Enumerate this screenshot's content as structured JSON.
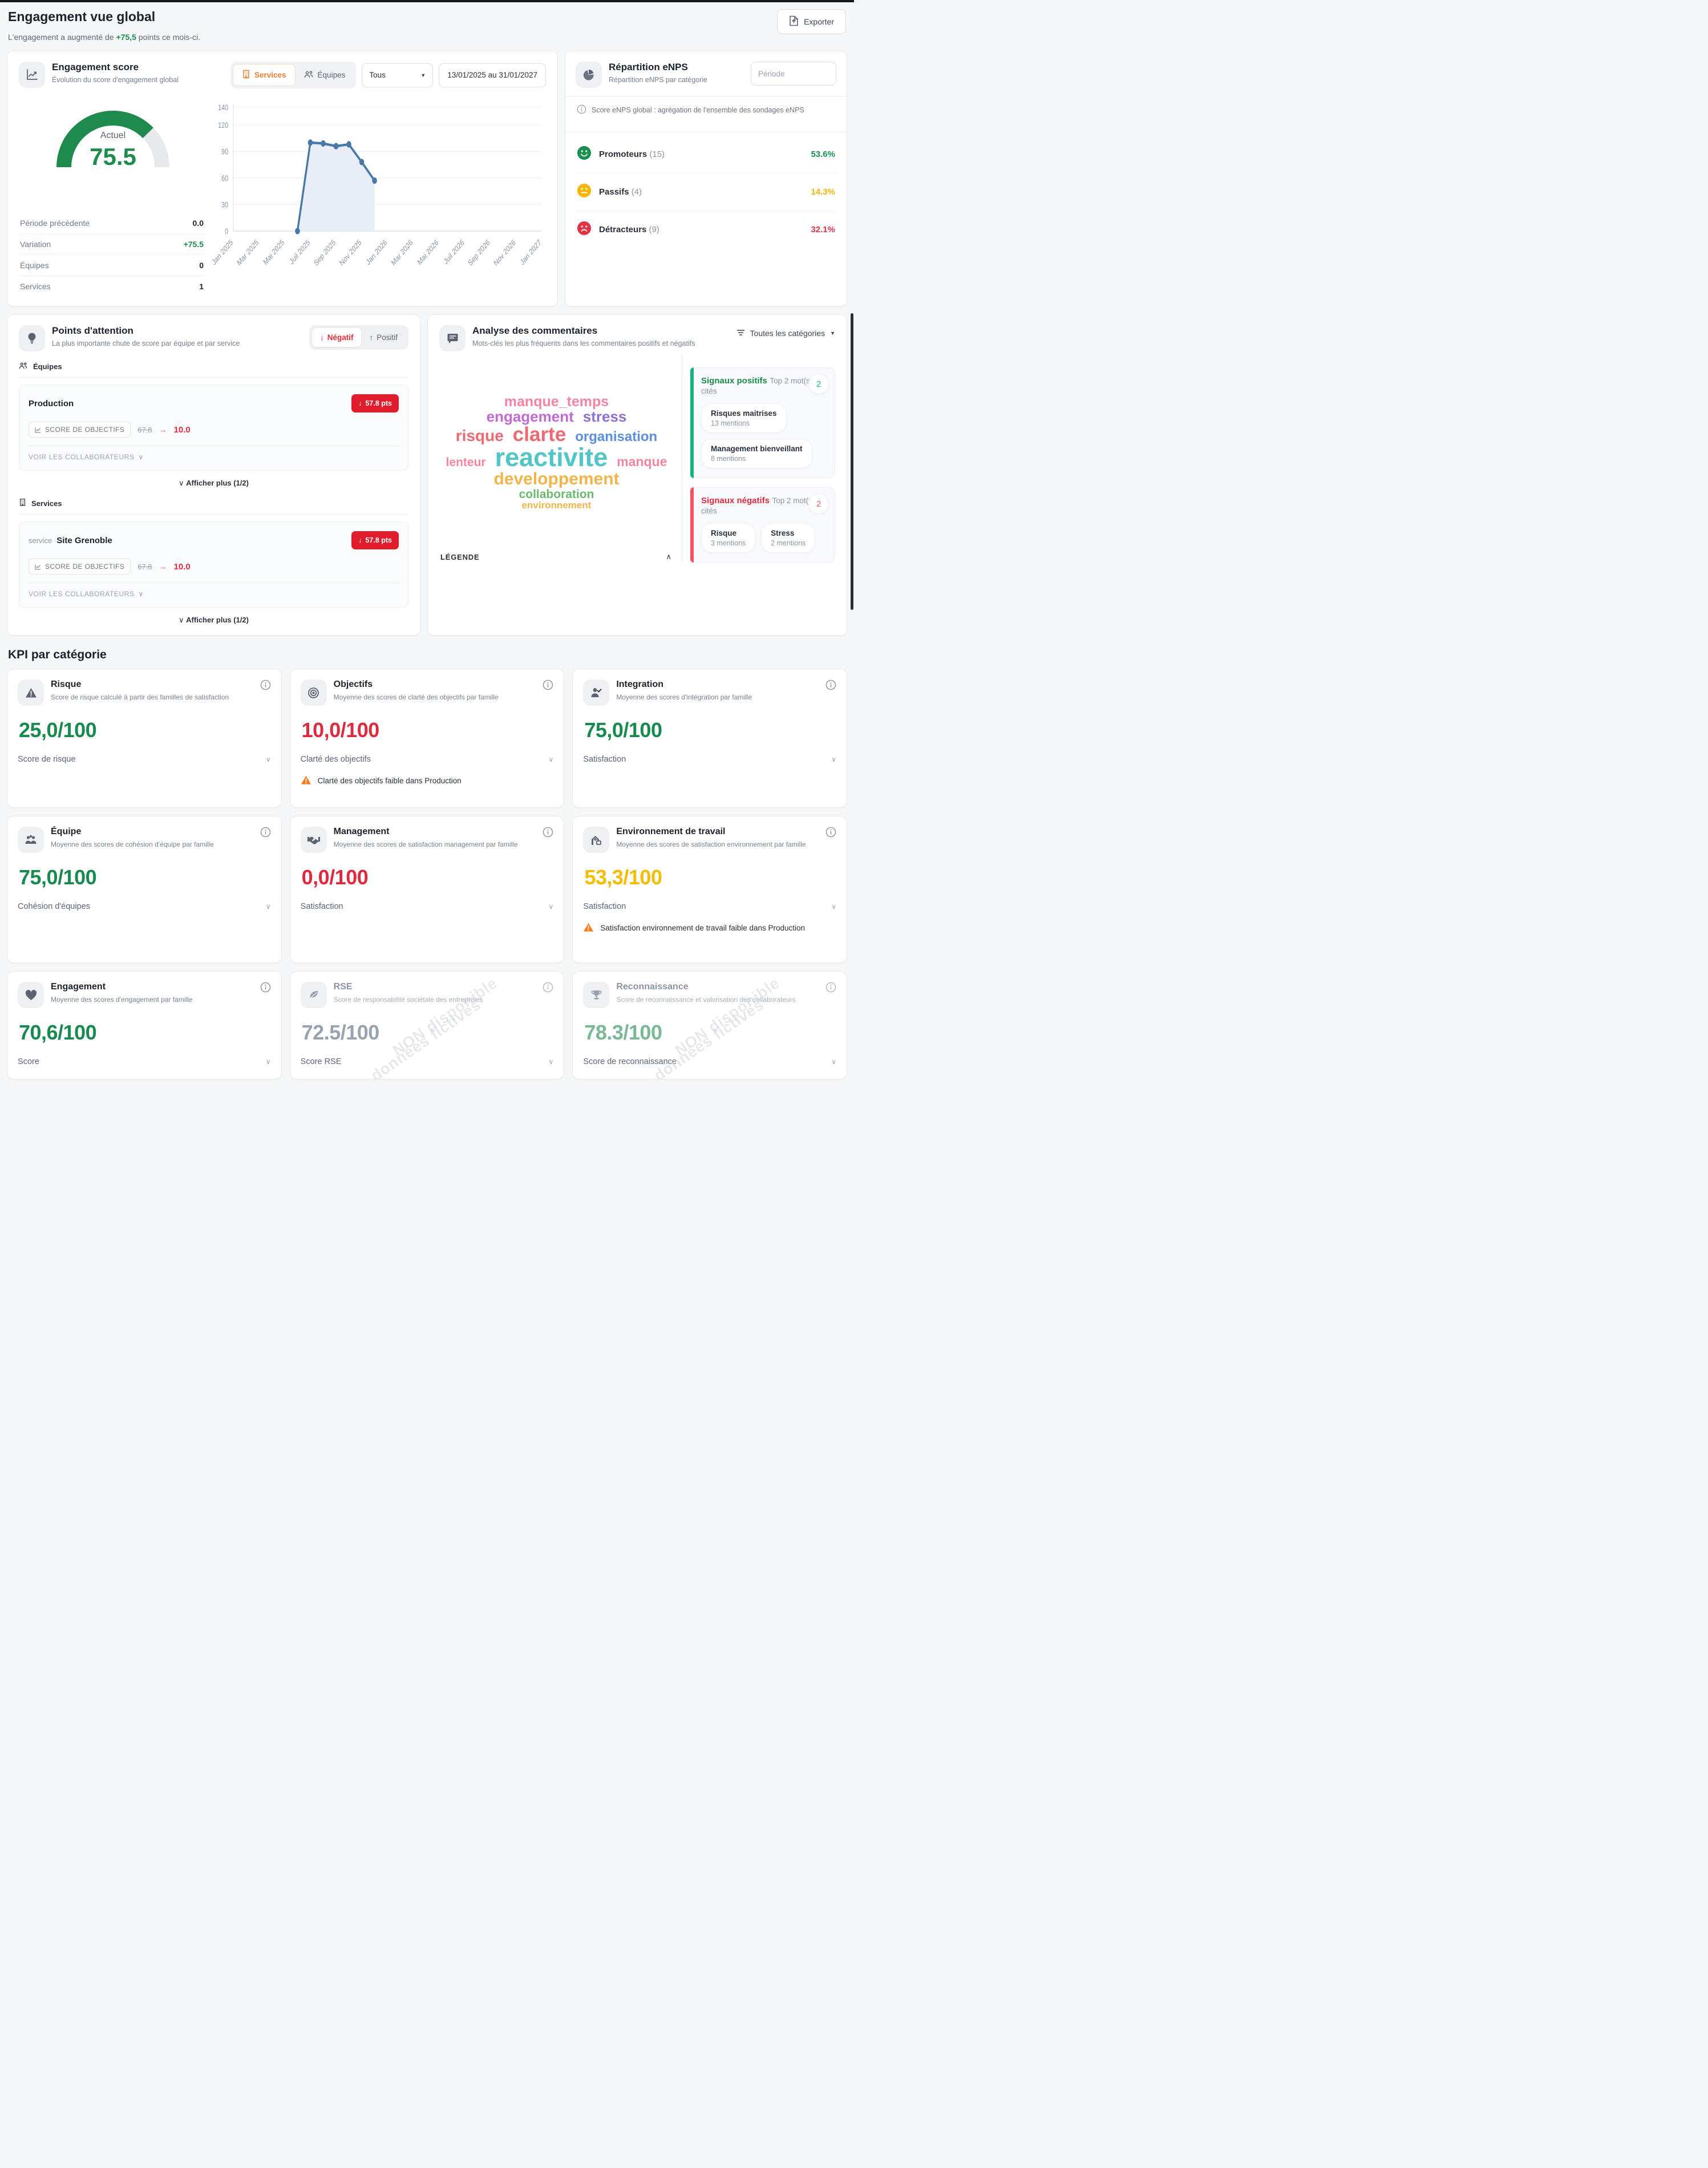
{
  "page": {
    "title": "Engagement vue global",
    "subtitle_prefix": "L'engagement a augmenté de ",
    "subtitle_delta": "+75,5",
    "subtitle_suffix": " points ce mois-ci.",
    "export_label": "Exporter"
  },
  "engagement_score": {
    "title": "Engagement score",
    "subtitle": "Évolution du score d'engagement global",
    "toggle": {
      "services": "Services",
      "equipes": "Équipes"
    },
    "filter_value": "Tous",
    "date_range": "13/01/2025 au 31/01/2027",
    "gauge": {
      "label": "Actuel",
      "value": "75.5",
      "percent": 75.5,
      "color": "#1f8a4e",
      "track": "#e7e9ec"
    },
    "stats": [
      {
        "label": "Période précédente",
        "value": "0.0"
      },
      {
        "label": "Variation",
        "value": "+75.5"
      },
      {
        "label": "Équipes",
        "value": "0"
      },
      {
        "label": "Services",
        "value": "1"
      }
    ]
  },
  "chart_data": {
    "type": "area",
    "title": "Évolution du score d'engagement global",
    "xlabel": "",
    "ylabel": "",
    "ylim": [
      0,
      140
    ],
    "y_ticks": [
      0,
      30,
      60,
      90,
      120,
      140
    ],
    "grid": true,
    "legend": false,
    "x_tick_labels": [
      "Jan 2025",
      "Mar 2025",
      "Mai 2025",
      "Juil 2025",
      "Sep 2025",
      "Nov 2025",
      "Jan 2026",
      "Mar 2026",
      "Mai 2026",
      "Juil 2026",
      "Sep 2026",
      "Nov 2026",
      "Jan 2027"
    ],
    "x_total_months": 24,
    "points": [
      {
        "label": "Juin 2025",
        "x_index": 5,
        "y": 0
      },
      {
        "label": "Juil 2025",
        "x_index": 6,
        "y": 100
      },
      {
        "label": "Août 2025",
        "x_index": 7,
        "y": 99
      },
      {
        "label": "Sept 2025",
        "x_index": 8,
        "y": 96
      },
      {
        "label": "Oct 2025",
        "x_index": 9,
        "y": 98
      },
      {
        "label": "Nov 2025",
        "x_index": 10,
        "y": 78
      },
      {
        "label": "Déc 2025",
        "x_index": 11,
        "y": 57
      }
    ],
    "line_color": "#4878a8",
    "fill_color": "#e9edf8"
  },
  "enps": {
    "title": "Répartition eNPS",
    "subtitle": "Répartition eNPS par catégorie",
    "period_placeholder": "Période",
    "info": "Score eNPS global : agrégation de l'ensemble des sondages eNPS",
    "rows": [
      {
        "label": "Promoteurs",
        "count": "(15)",
        "value": "53.6%",
        "color": "#188f4f",
        "face": "happy"
      },
      {
        "label": "Passifs",
        "count": "(4)",
        "value": "14.3%",
        "color": "#f2b705",
        "face": "neutral"
      },
      {
        "label": "Détracteurs",
        "count": "(9)",
        "value": "32.1%",
        "color": "#e13248",
        "face": "sad"
      }
    ]
  },
  "attention": {
    "title": "Points d'attention",
    "subtitle": "La plus importante chute de score par équipe et par service",
    "toggle": {
      "negative": "Négatif",
      "positive": "Positif"
    },
    "sections": [
      {
        "label": "Équipes",
        "row": {
          "prefix": "",
          "name": "Production",
          "badge": "57.8 pts",
          "chip": "SCORE DE OBJECTIFS",
          "old": "67.8",
          "new": "10.0",
          "link": "VOIR LES COLLABORATEURS"
        },
        "more": "Afficher plus (1/2)"
      },
      {
        "label": "Services",
        "row": {
          "prefix": "service",
          "name": "Site Grenoble",
          "badge": "57.8 pts",
          "chip": "SCORE DE OBJECTIFS",
          "old": "67.8",
          "new": "10.0",
          "link": "VOIR LES COLLABORATEURS"
        },
        "more": "Afficher plus (1/2)"
      }
    ]
  },
  "comments": {
    "title": "Analyse des commentaires",
    "subtitle": "Mots-clés les plus fréquents dans les commentaires positifs et négatifs",
    "filter": "Toutes les catégories",
    "legend_label": "LÉGENDE",
    "wordcloud": [
      {
        "text": "manque_temps",
        "color": "#f585a0",
        "size": 25
      },
      {
        "text": "engagement",
        "color": "#c06ad4",
        "size": 26
      },
      {
        "text": "stress",
        "color": "#8d6fd6",
        "size": 26
      },
      {
        "text": "risque",
        "color": "#ee6a72",
        "size": 28
      },
      {
        "text": "clarte",
        "color": "#ee6a72",
        "size": 35
      },
      {
        "text": "organisation",
        "color": "#5a8ede",
        "size": 24
      },
      {
        "text": "lenteur",
        "color": "#f585a0",
        "size": 21
      },
      {
        "text": "reactivite",
        "color": "#52c5c9",
        "size": 45
      },
      {
        "text": "manque",
        "color": "#f585a0",
        "size": 23
      },
      {
        "text": "developpement",
        "color": "#f2b54b",
        "size": 30
      },
      {
        "text": "collaboration",
        "color": "#6cb871",
        "size": 21
      },
      {
        "text": "environnement",
        "color": "#f2b54b",
        "size": 17
      }
    ],
    "cloud_lines": [
      [
        0
      ],
      [
        1,
        2
      ],
      [
        3,
        4,
        5
      ],
      [
        6,
        7,
        8
      ],
      [
        9
      ],
      [
        10
      ],
      [
        11
      ]
    ],
    "positive": {
      "title": "Signaux positifs",
      "top_label": "Top 2 mot(s) cités",
      "count": "2",
      "pills": [
        {
          "word": "Risques maitrises",
          "mentions": "13 mentions"
        },
        {
          "word": "Management bienveillant",
          "mentions": "8 mentions"
        }
      ]
    },
    "negative": {
      "title": "Signaux négatifs",
      "top_label": "Top 2 mot(s) cités",
      "count": "2",
      "pills": [
        {
          "word": "Risque",
          "mentions": "3 mentions"
        },
        {
          "word": "Stress",
          "mentions": "2 mentions"
        }
      ]
    }
  },
  "kpi": {
    "section_title": "KPI par catégorie",
    "cards": [
      {
        "title": "Risque",
        "subtitle": "Score de risque calculé à partir des familles de satisfaction",
        "value": "25,0/100",
        "value_color": "#188a4f",
        "label": "Score de risque"
      },
      {
        "title": "Objectifs",
        "subtitle": "Moyenne des scores de clarté des objectifs par famille",
        "value": "10,0/100",
        "value_color": "#dc2b3e",
        "label": "Clarté des objectifs",
        "warning": "Clarté des objectifs faible dans Production"
      },
      {
        "title": "Integration",
        "subtitle": "Moyenne des scores d'intégration par famille",
        "value": "75,0/100",
        "value_color": "#188a4f",
        "label": "Satisfaction"
      },
      {
        "title": "Équipe",
        "subtitle": "Moyenne des scores de cohésion d'équipe par famille",
        "value": "75,0/100",
        "value_color": "#188a4f",
        "label": "Cohésion d'équipes"
      },
      {
        "title": "Management",
        "subtitle": "Moyenne des scores de satisfaction management par famille",
        "value": "0,0/100",
        "value_color": "#dc2b3e",
        "label": "Satisfaction"
      },
      {
        "title": "Environnement de travail",
        "subtitle": "Moyenne des scores de satisfaction environnement par famille",
        "value": "53,3/100",
        "value_color": "#f5bd02",
        "label": "Satisfaction",
        "warning": "Satisfaction environnement de travail faible dans Production"
      },
      {
        "title": "Engagement",
        "subtitle": "Moyenne des scores d'engagement par famille",
        "value": "70,6/100",
        "value_color": "#188a4f",
        "label": "Score"
      },
      {
        "title": "RSE",
        "subtitle": "Score de responsabilité sociétale des entreprises",
        "value": "72.5/100",
        "value_color": "#9aa2af",
        "label": "Score RSE",
        "watermark_line1": "NON disponible",
        "watermark_line2": "données fictives"
      },
      {
        "title": "Reconnaissance",
        "subtitle": "Score de reconnaissance et valorisation des collaborateurs",
        "value": "78.3/100",
        "value_color": "#7cb796",
        "label": "Score de reconnaissance",
        "watermark_line1": "NON disponible",
        "watermark_line2": "données fictives"
      }
    ]
  }
}
